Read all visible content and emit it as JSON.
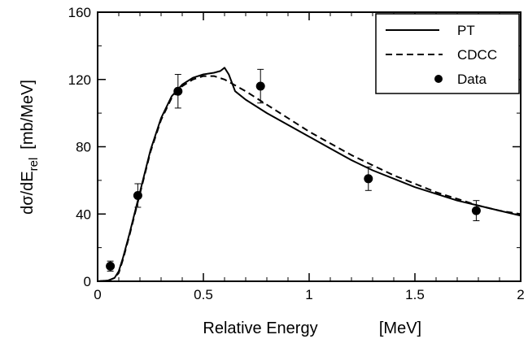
{
  "chart_data": {
    "type": "line",
    "xlabel": {
      "main": "Relative Energy",
      "unit": "[MeV]"
    },
    "ylabel": {
      "main": "dσ/dE",
      "sub": "rel",
      "unit": "[mb/MeV]"
    },
    "xlim": [
      0,
      2
    ],
    "ylim": [
      0,
      160
    ],
    "xticks": [
      0,
      0.5,
      1,
      1.5,
      2
    ],
    "xtick_labels": [
      "0",
      "0.5",
      "1",
      "1.5",
      "2"
    ],
    "yticks": [
      0,
      40,
      80,
      120,
      160
    ],
    "ytick_labels": [
      "0",
      "40",
      "80",
      "120",
      "160"
    ],
    "grid": false,
    "legend_position": "top-right",
    "legend": [
      {
        "label": "PT",
        "style": "solid"
      },
      {
        "label": "CDCC",
        "style": "dashed"
      },
      {
        "label": "Data",
        "style": "marker"
      }
    ],
    "series": [
      {
        "name": "PT",
        "style": "solid",
        "color": "#000000",
        "x": [
          0.0,
          0.05,
          0.08,
          0.1,
          0.12,
          0.15,
          0.18,
          0.2,
          0.25,
          0.3,
          0.35,
          0.4,
          0.45,
          0.5,
          0.55,
          0.58,
          0.6,
          0.62,
          0.65,
          0.7,
          0.8,
          0.9,
          1.0,
          1.1,
          1.2,
          1.3,
          1.4,
          1.5,
          1.6,
          1.7,
          1.8,
          1.9,
          2.0
        ],
        "y": [
          0,
          0.5,
          2,
          6,
          14,
          28,
          43,
          53,
          78,
          97,
          110,
          117,
          121,
          123,
          124,
          125,
          127,
          123,
          113,
          108,
          100,
          93,
          86,
          79,
          72,
          66,
          61,
          56,
          52,
          48,
          45,
          42,
          39
        ]
      },
      {
        "name": "CDCC",
        "style": "dashed",
        "color": "#000000",
        "x": [
          0.0,
          0.05,
          0.08,
          0.1,
          0.12,
          0.15,
          0.18,
          0.2,
          0.25,
          0.3,
          0.35,
          0.4,
          0.45,
          0.5,
          0.55,
          0.6,
          0.7,
          0.8,
          0.9,
          1.0,
          1.1,
          1.2,
          1.3,
          1.4,
          1.5,
          1.6,
          1.7,
          1.8,
          1.9,
          2.0
        ],
        "y": [
          0,
          0.5,
          2,
          5,
          13,
          27,
          42,
          52,
          77,
          96,
          109,
          116,
          120,
          122,
          122,
          120,
          113,
          105,
          97,
          89,
          82,
          75,
          69,
          63,
          58,
          53,
          49,
          45,
          42,
          40
        ]
      },
      {
        "name": "Data",
        "style": "marker",
        "color": "#000000",
        "x": [
          0.06,
          0.19,
          0.38,
          0.77,
          1.28,
          1.79
        ],
        "y": [
          9,
          51,
          113,
          116,
          61,
          42
        ],
        "yerr": [
          3,
          7,
          10,
          10,
          7,
          6
        ]
      }
    ]
  }
}
